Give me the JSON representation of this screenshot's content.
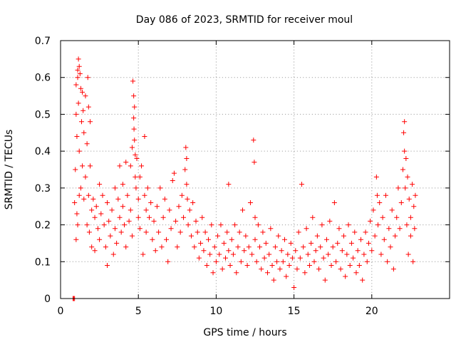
{
  "chart_data": {
    "type": "scatter",
    "title": "Day 086 of 2023, SRMTID for receiver moul",
    "xlabel": "GPS time / hours",
    "ylabel": "SRMTID / TECUs",
    "xlim": [
      0,
      25
    ],
    "ylim": [
      0,
      0.7
    ],
    "xticks": [
      0,
      5,
      10,
      15,
      20
    ],
    "xtick_labels": [
      "0",
      "5",
      "10",
      "15",
      "20"
    ],
    "yticks": [
      0,
      0.1,
      0.2,
      0.3,
      0.4,
      0.5,
      0.6,
      0.7
    ],
    "ytick_labels": [
      "0",
      "0.1",
      "0.2",
      "0.3",
      "0.4",
      "0.5",
      "0.6",
      "0.7"
    ],
    "grid": true,
    "marker": "+",
    "color": "#ff0000",
    "series": [
      {
        "name": "SRMTID",
        "points": [
          [
            0.8,
            0.0
          ],
          [
            0.85,
            0.0
          ],
          [
            0.9,
            0.0
          ],
          [
            0.9,
            0.26
          ],
          [
            0.95,
            0.35
          ],
          [
            1.0,
            0.5
          ],
          [
            1.0,
            0.58
          ],
          [
            1.05,
            0.44
          ],
          [
            1.05,
            0.23
          ],
          [
            1.1,
            0.62
          ],
          [
            1.1,
            0.6
          ],
          [
            1.15,
            0.65
          ],
          [
            1.15,
            0.53
          ],
          [
            1.2,
            0.63
          ],
          [
            1.2,
            0.4
          ],
          [
            1.25,
            0.61
          ],
          [
            1.3,
            0.57
          ],
          [
            1.3,
            0.3
          ],
          [
            1.35,
            0.48
          ],
          [
            1.4,
            0.56
          ],
          [
            1.4,
            0.36
          ],
          [
            1.45,
            0.51
          ],
          [
            1.5,
            0.45
          ],
          [
            1.5,
            0.27
          ],
          [
            1.6,
            0.55
          ],
          [
            1.6,
            0.33
          ],
          [
            1.7,
            0.42
          ],
          [
            1.7,
            0.2
          ],
          [
            1.75,
            0.6
          ],
          [
            1.8,
            0.52
          ],
          [
            1.8,
            0.28
          ],
          [
            1.85,
            0.18
          ],
          [
            1.9,
            0.48
          ],
          [
            1.9,
            0.36
          ],
          [
            2.0,
            0.24
          ],
          [
            2.0,
            0.14
          ],
          [
            1.0,
            0.16
          ],
          [
            1.1,
            0.2
          ],
          [
            1.2,
            0.28
          ],
          [
            2.1,
            0.27
          ],
          [
            2.2,
            0.22
          ],
          [
            2.2,
            0.13
          ],
          [
            2.3,
            0.25
          ],
          [
            2.4,
            0.19
          ],
          [
            2.5,
            0.31
          ],
          [
            2.5,
            0.16
          ],
          [
            2.6,
            0.23
          ],
          [
            2.7,
            0.28
          ],
          [
            2.8,
            0.2
          ],
          [
            2.9,
            0.14
          ],
          [
            3.0,
            0.26
          ],
          [
            3.0,
            0.09
          ],
          [
            3.1,
            0.21
          ],
          [
            3.2,
            0.17
          ],
          [
            3.3,
            0.24
          ],
          [
            3.4,
            0.12
          ],
          [
            3.5,
            0.3
          ],
          [
            3.5,
            0.19
          ],
          [
            3.6,
            0.15
          ],
          [
            3.7,
            0.27
          ],
          [
            3.8,
            0.36
          ],
          [
            3.8,
            0.22
          ],
          [
            3.9,
            0.18
          ],
          [
            4.0,
            0.31
          ],
          [
            4.0,
            0.25
          ],
          [
            4.1,
            0.2
          ],
          [
            4.2,
            0.37
          ],
          [
            4.2,
            0.14
          ],
          [
            4.3,
            0.28
          ],
          [
            4.4,
            0.21
          ],
          [
            4.5,
            0.36
          ],
          [
            4.5,
            0.24
          ],
          [
            4.6,
            0.41
          ],
          [
            4.6,
            0.17
          ],
          [
            4.65,
            0.59
          ],
          [
            4.7,
            0.55
          ],
          [
            4.7,
            0.49
          ],
          [
            4.72,
            0.46
          ],
          [
            4.75,
            0.52
          ],
          [
            4.75,
            0.43
          ],
          [
            4.8,
            0.39
          ],
          [
            4.8,
            0.33
          ],
          [
            4.85,
            0.3
          ],
          [
            4.9,
            0.38
          ],
          [
            5.0,
            0.27
          ],
          [
            5.0,
            0.22
          ],
          [
            5.1,
            0.33
          ],
          [
            5.1,
            0.19
          ],
          [
            5.2,
            0.36
          ],
          [
            5.3,
            0.12
          ],
          [
            5.4,
            0.44
          ],
          [
            5.4,
            0.28
          ],
          [
            5.5,
            0.24
          ],
          [
            5.5,
            0.18
          ],
          [
            5.6,
            0.3
          ],
          [
            5.7,
            0.22
          ],
          [
            5.8,
            0.26
          ],
          [
            5.9,
            0.16
          ],
          [
            6.0,
            0.21
          ],
          [
            6.1,
            0.13
          ],
          [
            6.2,
            0.25
          ],
          [
            6.3,
            0.18
          ],
          [
            6.4,
            0.3
          ],
          [
            6.5,
            0.14
          ],
          [
            6.6,
            0.22
          ],
          [
            6.7,
            0.27
          ],
          [
            6.8,
            0.16
          ],
          [
            6.9,
            0.1
          ],
          [
            7.0,
            0.24
          ],
          [
            7.1,
            0.19
          ],
          [
            7.2,
            0.32
          ],
          [
            7.3,
            0.34
          ],
          [
            7.4,
            0.21
          ],
          [
            7.5,
            0.14
          ],
          [
            7.6,
            0.25
          ],
          [
            7.7,
            0.18
          ],
          [
            7.8,
            0.28
          ],
          [
            7.9,
            0.22
          ],
          [
            8.0,
            0.35
          ],
          [
            8.05,
            0.41
          ],
          [
            8.1,
            0.38
          ],
          [
            8.1,
            0.31
          ],
          [
            8.15,
            0.27
          ],
          [
            8.2,
            0.2
          ],
          [
            8.3,
            0.24
          ],
          [
            8.4,
            0.17
          ],
          [
            8.5,
            0.26
          ],
          [
            8.6,
            0.14
          ],
          [
            8.7,
            0.21
          ],
          [
            8.8,
            0.18
          ],
          [
            8.9,
            0.11
          ],
          [
            9.0,
            0.15
          ],
          [
            9.1,
            0.22
          ],
          [
            9.2,
            0.13
          ],
          [
            9.3,
            0.18
          ],
          [
            9.4,
            0.09
          ],
          [
            9.5,
            0.16
          ],
          [
            9.6,
            0.12
          ],
          [
            9.7,
            0.2
          ],
          [
            9.8,
            0.07
          ],
          [
            9.9,
            0.14
          ],
          [
            10.0,
            0.1
          ],
          [
            10.1,
            0.17
          ],
          [
            10.2,
            0.12
          ],
          [
            10.3,
            0.2
          ],
          [
            10.4,
            0.08
          ],
          [
            10.5,
            0.15
          ],
          [
            10.6,
            0.11
          ],
          [
            10.7,
            0.18
          ],
          [
            10.8,
            0.13
          ],
          [
            10.8,
            0.31
          ],
          [
            10.9,
            0.09
          ],
          [
            11.0,
            0.16
          ],
          [
            11.1,
            0.12
          ],
          [
            11.2,
            0.2
          ],
          [
            11.3,
            0.07
          ],
          [
            11.4,
            0.14
          ],
          [
            11.5,
            0.18
          ],
          [
            11.6,
            0.1
          ],
          [
            11.7,
            0.24
          ],
          [
            11.8,
            0.13
          ],
          [
            11.9,
            0.17
          ],
          [
            12.0,
            0.09
          ],
          [
            12.1,
            0.14
          ],
          [
            12.2,
            0.26
          ],
          [
            12.3,
            0.12
          ],
          [
            12.4,
            0.43
          ],
          [
            12.45,
            0.37
          ],
          [
            12.5,
            0.22
          ],
          [
            12.5,
            0.16
          ],
          [
            12.6,
            0.1
          ],
          [
            12.7,
            0.2
          ],
          [
            12.8,
            0.14
          ],
          [
            12.9,
            0.08
          ],
          [
            13.0,
            0.18
          ],
          [
            13.1,
            0.11
          ],
          [
            13.2,
            0.15
          ],
          [
            13.3,
            0.07
          ],
          [
            13.4,
            0.12
          ],
          [
            13.5,
            0.19
          ],
          [
            13.6,
            0.09
          ],
          [
            13.7,
            0.05
          ],
          [
            13.8,
            0.14
          ],
          [
            13.9,
            0.1
          ],
          [
            14.0,
            0.17
          ],
          [
            14.1,
            0.08
          ],
          [
            14.2,
            0.13
          ],
          [
            14.3,
            0.1
          ],
          [
            14.4,
            0.16
          ],
          [
            14.5,
            0.06
          ],
          [
            14.6,
            0.12
          ],
          [
            14.7,
            0.09
          ],
          [
            14.8,
            0.15
          ],
          [
            14.9,
            0.11
          ],
          [
            15.0,
            0.03
          ],
          [
            15.1,
            0.13
          ],
          [
            15.2,
            0.08
          ],
          [
            15.3,
            0.18
          ],
          [
            15.4,
            0.11
          ],
          [
            15.5,
            0.31
          ],
          [
            15.6,
            0.14
          ],
          [
            15.7,
            0.07
          ],
          [
            15.8,
            0.19
          ],
          [
            15.9,
            0.12
          ],
          [
            16.0,
            0.09
          ],
          [
            16.1,
            0.15
          ],
          [
            16.2,
            0.22
          ],
          [
            16.3,
            0.1
          ],
          [
            16.4,
            0.13
          ],
          [
            16.5,
            0.17
          ],
          [
            16.6,
            0.08
          ],
          [
            16.7,
            0.14
          ],
          [
            16.8,
            0.2
          ],
          [
            16.9,
            0.11
          ],
          [
            17.0,
            0.05
          ],
          [
            17.1,
            0.16
          ],
          [
            17.2,
            0.12
          ],
          [
            17.3,
            0.21
          ],
          [
            17.4,
            0.09
          ],
          [
            17.5,
            0.14
          ],
          [
            17.6,
            0.26
          ],
          [
            17.7,
            0.1
          ],
          [
            17.8,
            0.15
          ],
          [
            17.9,
            0.19
          ],
          [
            18.0,
            0.08
          ],
          [
            18.1,
            0.13
          ],
          [
            18.2,
            0.17
          ],
          [
            18.3,
            0.06
          ],
          [
            18.4,
            0.12
          ],
          [
            18.5,
            0.2
          ],
          [
            18.6,
            0.09
          ],
          [
            18.7,
            0.15
          ],
          [
            18.8,
            0.11
          ],
          [
            18.9,
            0.18
          ],
          [
            19.0,
            0.07
          ],
          [
            19.1,
            0.13
          ],
          [
            19.2,
            0.09
          ],
          [
            19.3,
            0.16
          ],
          [
            19.4,
            0.05
          ],
          [
            19.5,
            0.12
          ],
          [
            19.6,
            0.18
          ],
          [
            19.7,
            0.1
          ],
          [
            19.8,
            0.15
          ],
          [
            19.9,
            0.21
          ],
          [
            20.0,
            0.13
          ],
          [
            20.1,
            0.24
          ],
          [
            20.2,
            0.17
          ],
          [
            20.3,
            0.33
          ],
          [
            20.35,
            0.28
          ],
          [
            20.4,
            0.2
          ],
          [
            20.5,
            0.26
          ],
          [
            20.6,
            0.12
          ],
          [
            20.7,
            0.22
          ],
          [
            20.8,
            0.16
          ],
          [
            20.9,
            0.28
          ],
          [
            21.0,
            0.1
          ],
          [
            21.1,
            0.19
          ],
          [
            21.2,
            0.14
          ],
          [
            21.3,
            0.24
          ],
          [
            21.4,
            0.08
          ],
          [
            21.5,
            0.17
          ],
          [
            21.6,
            0.22
          ],
          [
            21.7,
            0.3
          ],
          [
            21.8,
            0.19
          ],
          [
            21.9,
            0.26
          ],
          [
            22.0,
            0.35
          ],
          [
            22.05,
            0.45
          ],
          [
            22.1,
            0.48
          ],
          [
            22.1,
            0.4
          ],
          [
            22.15,
            0.3
          ],
          [
            22.2,
            0.38
          ],
          [
            22.25,
            0.2
          ],
          [
            22.3,
            0.33
          ],
          [
            22.35,
            0.12
          ],
          [
            22.4,
            0.27
          ],
          [
            22.5,
            0.22
          ],
          [
            22.5,
            0.17
          ],
          [
            22.6,
            0.31
          ],
          [
            22.65,
            0.1
          ],
          [
            22.7,
            0.25
          ],
          [
            22.75,
            0.19
          ],
          [
            22.8,
            0.28
          ]
        ]
      }
    ]
  }
}
